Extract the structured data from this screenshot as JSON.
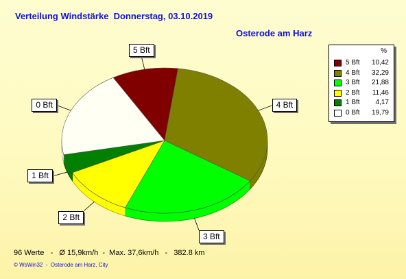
{
  "title": "Verteilung Windstärke  Donnerstag, 03.10.2019",
  "subtitle": "Osterode am Harz",
  "legend_header": "%",
  "stats": "96 Werte   -   Ø 15,9km/h  -  Max. 37,6km/h   -   382.8 km",
  "footer": "© WsWin32  -  Osterode am Harz, City",
  "chart_data": {
    "type": "pie",
    "slices": [
      {
        "label": "5 Bft",
        "value": 10.42,
        "color": "#800000"
      },
      {
        "label": "4 Bft",
        "value": 32.29,
        "color": "#808000"
      },
      {
        "label": "3 Bft",
        "value": 21.88,
        "color": "#00ff00"
      },
      {
        "label": "2 Bft",
        "value": 11.46,
        "color": "#ffff00"
      },
      {
        "label": "1 Bft",
        "value": 4.17,
        "color": "#008000"
      },
      {
        "label": "0 Bft",
        "value": 19.79,
        "color": "#fffff4"
      }
    ],
    "legend": [
      {
        "label": "5 Bft",
        "value": "10,42",
        "color": "#800000"
      },
      {
        "label": "4 Bft",
        "value": "32,29",
        "color": "#808000"
      },
      {
        "label": "3 Bft",
        "value": "21,88",
        "color": "#00ff00"
      },
      {
        "label": "2 Bft",
        "value": "11,46",
        "color": "#ffff00"
      },
      {
        "label": "1 Bft",
        "value": "4,17",
        "color": "#008000"
      },
      {
        "label": "0 Bft",
        "value": "19,79",
        "color": "#ffffff"
      }
    ],
    "legend_position": "right",
    "style": "3d"
  }
}
